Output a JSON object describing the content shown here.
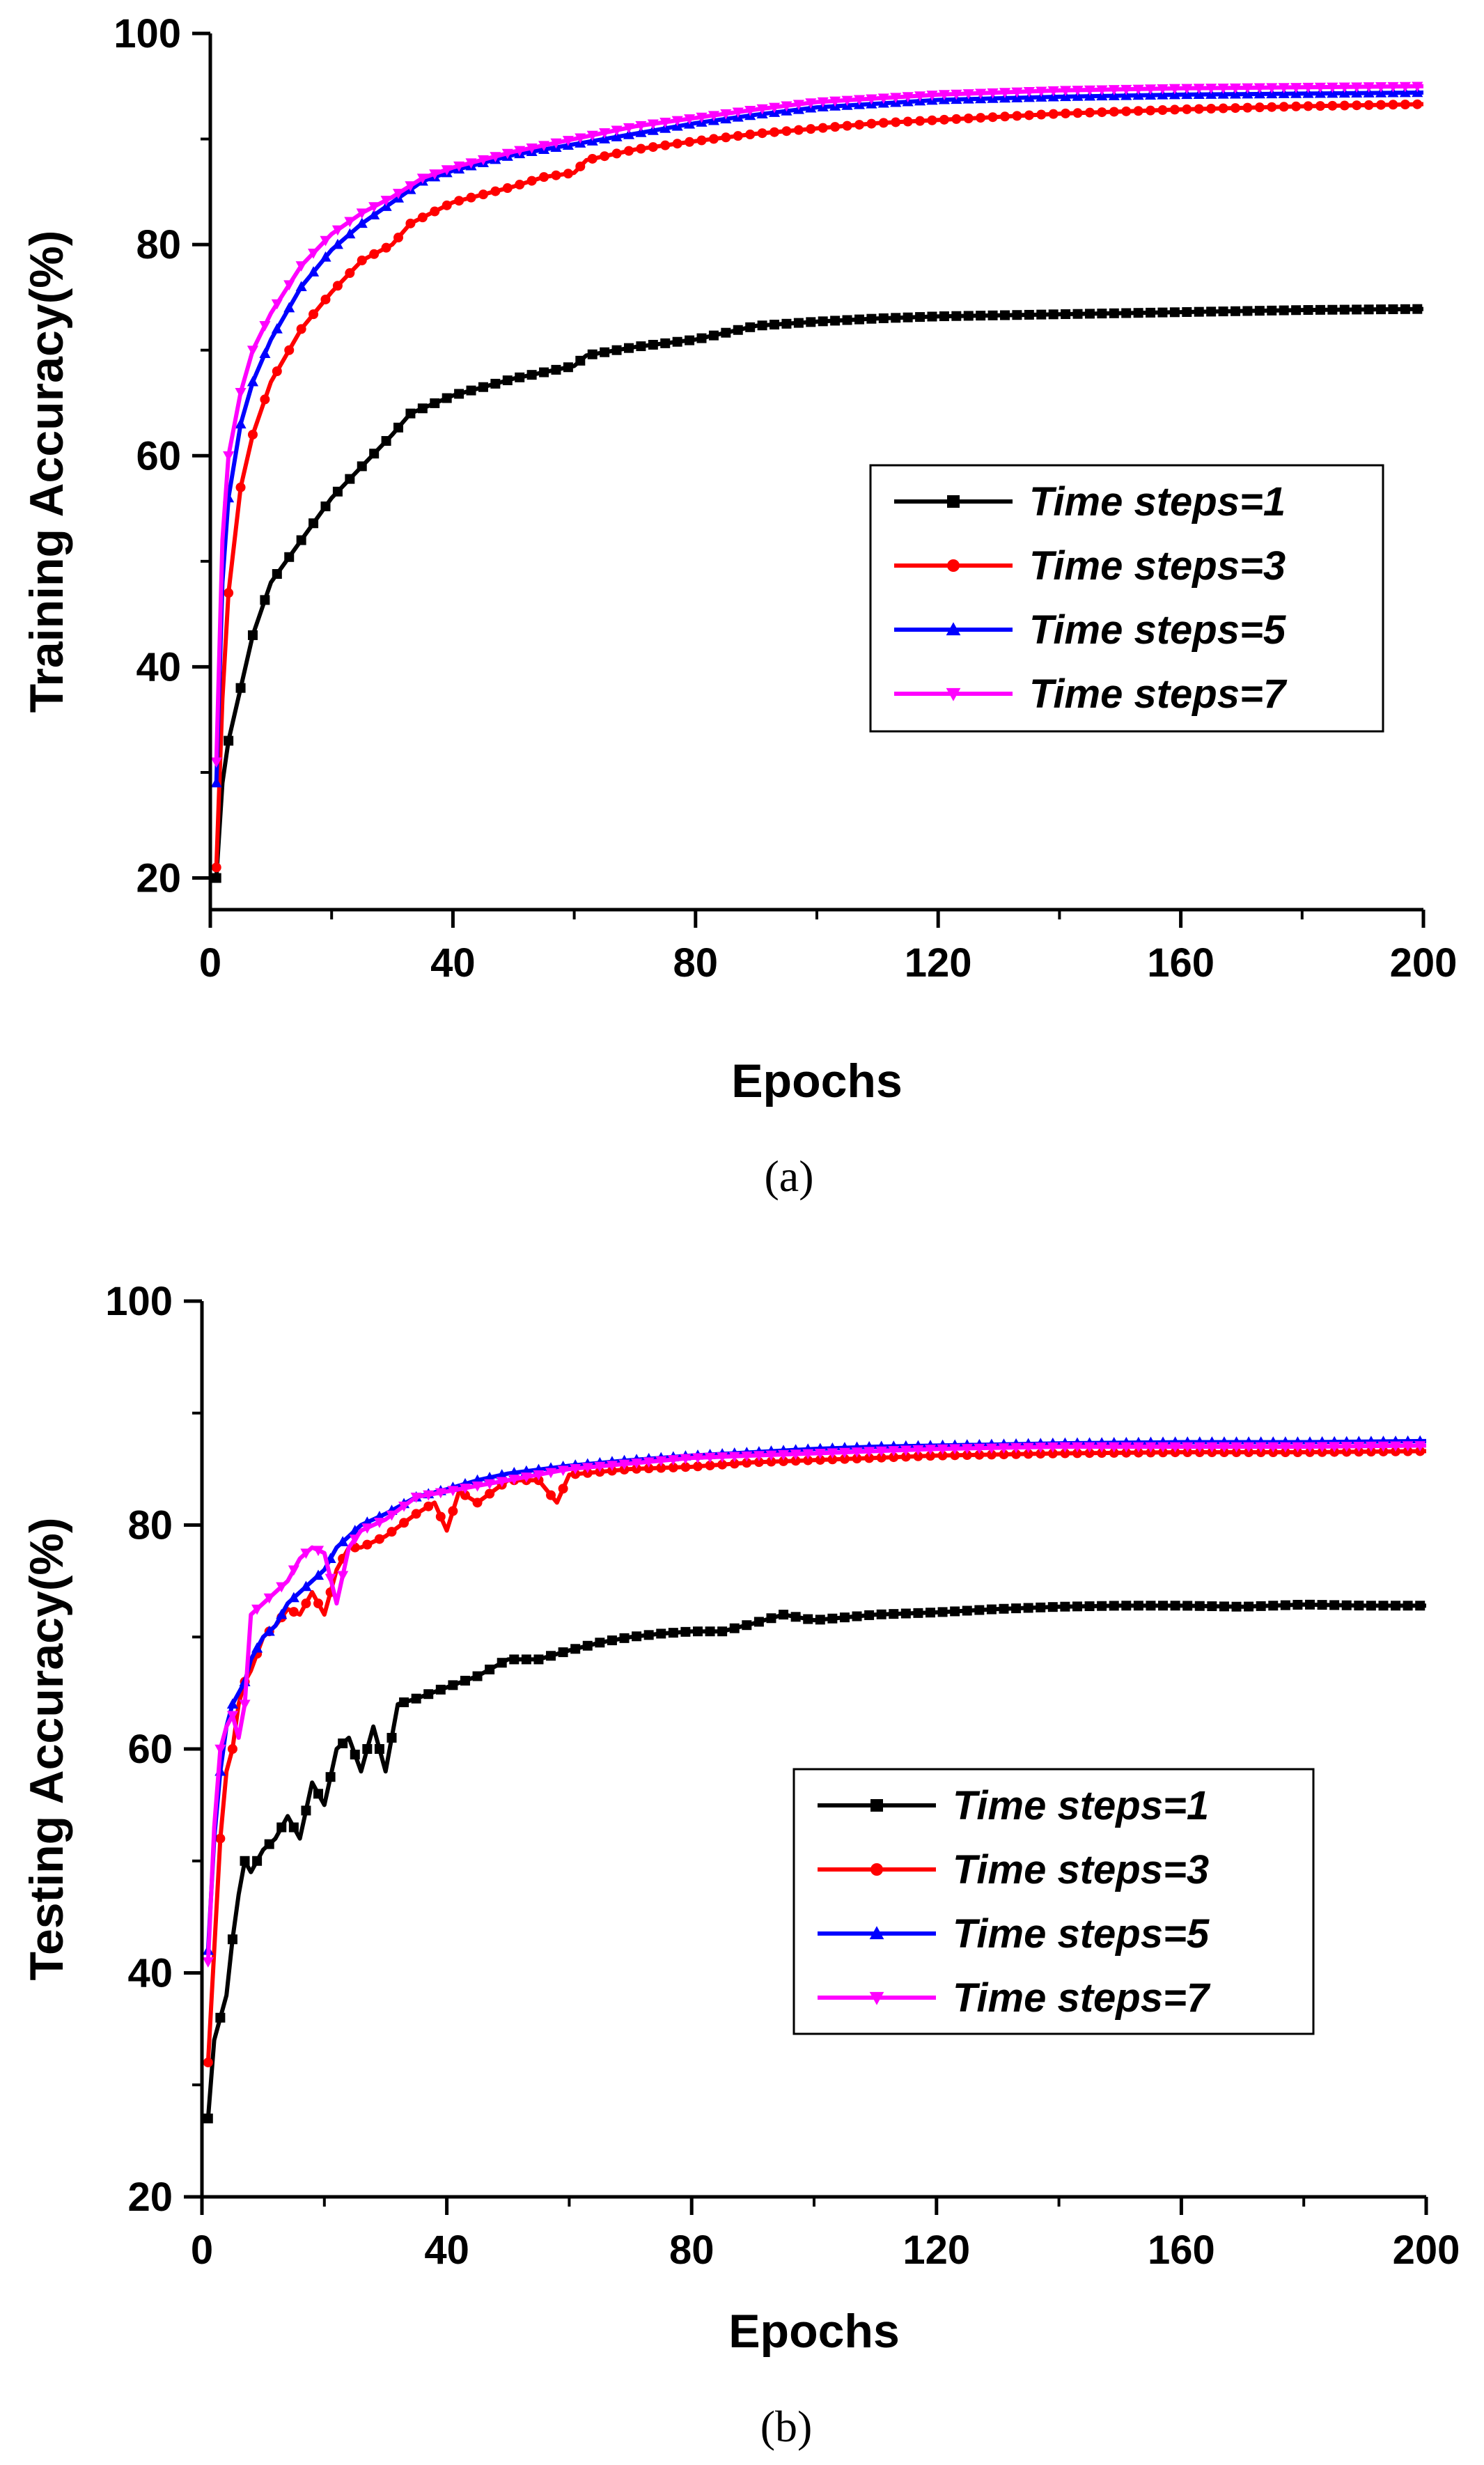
{
  "chart_data": [
    {
      "type": "line",
      "panel": "a",
      "caption": "(a)",
      "title": "",
      "xlabel": "Epochs",
      "ylabel": "Training Accuracy(%)",
      "xlim": [
        0,
        200
      ],
      "ylim": [
        17,
        100
      ],
      "x_ticks": [
        0,
        40,
        80,
        120,
        160,
        200
      ],
      "y_ticks": [
        20,
        40,
        60,
        80,
        100
      ],
      "x_tick_labels": [
        "0",
        "40",
        "80",
        "120",
        "160",
        "200"
      ],
      "y_tick_labels": [
        "20",
        "40",
        "60",
        "80",
        "100"
      ],
      "legend_position": "right-middle",
      "series": [
        {
          "name": "Time steps=1",
          "color": "#000000",
          "marker": "square",
          "x": [
            1,
            2,
            3,
            5,
            7,
            10,
            15,
            20,
            25,
            30,
            33,
            40,
            50,
            60,
            62,
            70,
            80,
            90,
            95,
            100,
            110,
            120,
            140,
            160,
            180,
            200
          ],
          "y": [
            20,
            29,
            33,
            38,
            43,
            48,
            52,
            56,
            59,
            62,
            64,
            65.7,
            67.3,
            68.5,
            69.5,
            70.3,
            71,
            72.3,
            72.5,
            72.7,
            73,
            73.2,
            73.4,
            73.6,
            73.8,
            73.9
          ]
        },
        {
          "name": "Time steps=3",
          "color": "#ff0000",
          "marker": "circle",
          "x": [
            1,
            2,
            3,
            5,
            7,
            10,
            15,
            20,
            25,
            30,
            33,
            40,
            50,
            55,
            60,
            62,
            70,
            80,
            90,
            100,
            110,
            120,
            140,
            160,
            180,
            200
          ],
          "y": [
            21,
            37,
            47,
            57,
            62,
            67,
            72,
            75.5,
            78.5,
            80,
            82,
            84,
            85.5,
            86.4,
            86.8,
            88,
            89,
            89.8,
            90.5,
            91,
            91.5,
            91.8,
            92.4,
            92.8,
            93.1,
            93.3
          ]
        },
        {
          "name": "Time steps=5",
          "color": "#0000ff",
          "marker": "triangle-up",
          "x": [
            1,
            2,
            3,
            5,
            7,
            10,
            15,
            20,
            25,
            30,
            35,
            40,
            50,
            60,
            70,
            80,
            90,
            100,
            120,
            140,
            160,
            180,
            200
          ],
          "y": [
            29,
            48,
            56,
            63,
            67,
            71,
            76,
            79.5,
            82,
            84,
            86,
            87,
            88.5,
            89.5,
            90.5,
            91.5,
            92.3,
            93,
            93.7,
            94,
            94.2,
            94.3,
            94.4
          ]
        },
        {
          "name": "Time steps=7",
          "color": "#ff00ff",
          "marker": "triangle-down",
          "x": [
            1,
            2,
            3,
            5,
            7,
            10,
            15,
            20,
            25,
            30,
            35,
            40,
            50,
            60,
            70,
            80,
            90,
            100,
            120,
            140,
            160,
            180,
            200
          ],
          "y": [
            31,
            52,
            60,
            66,
            70,
            73.5,
            78,
            81,
            83,
            84.5,
            86.3,
            87.3,
            88.8,
            90,
            91.2,
            92,
            92.8,
            93.5,
            94.2,
            94.6,
            94.8,
            94.9,
            95
          ]
        }
      ]
    },
    {
      "type": "line",
      "panel": "b",
      "caption": "(b)",
      "title": "",
      "xlabel": "Epochs",
      "ylabel": "Testing Accuracy(%)",
      "xlim": [
        0,
        200
      ],
      "ylim": [
        20,
        100
      ],
      "x_ticks": [
        0,
        40,
        80,
        120,
        160,
        200
      ],
      "y_ticks": [
        20,
        40,
        60,
        80,
        100
      ],
      "x_tick_labels": [
        "0",
        "40",
        "80",
        "120",
        "160",
        "200"
      ],
      "y_tick_labels": [
        "20",
        "40",
        "60",
        "80",
        "100"
      ],
      "legend_position": "right-middle",
      "series": [
        {
          "name": "Time steps=1",
          "color": "#000000",
          "marker": "square",
          "x": [
            1,
            2,
            3,
            4,
            5,
            6,
            7,
            8,
            10,
            12,
            14,
            16,
            18,
            20,
            22,
            24,
            26,
            28,
            30,
            32,
            35,
            40,
            45,
            50,
            55,
            60,
            65,
            70,
            75,
            80,
            85,
            90,
            95,
            100,
            110,
            120,
            130,
            140,
            150,
            160,
            170,
            180,
            190,
            200
          ],
          "y": [
            27,
            34,
            36,
            38,
            43,
            47,
            50,
            49,
            51,
            52,
            54,
            52,
            57,
            55,
            60,
            61,
            58,
            62,
            58,
            64,
            64.5,
            65.5,
            66.5,
            68,
            68,
            68.8,
            69.5,
            70,
            70.3,
            70.5,
            70.5,
            71.2,
            72,
            71.5,
            72,
            72.2,
            72.5,
            72.7,
            72.8,
            72.8,
            72.7,
            72.9,
            72.8,
            72.8
          ]
        },
        {
          "name": "Time steps=3",
          "color": "#ff0000",
          "marker": "circle",
          "x": [
            1,
            2,
            3,
            4,
            5,
            6,
            7,
            8,
            10,
            12,
            14,
            16,
            18,
            20,
            22,
            24,
            26,
            28,
            30,
            35,
            38,
            40,
            42,
            45,
            50,
            55,
            58,
            60,
            70,
            80,
            90,
            100,
            110,
            120,
            140,
            160,
            180,
            200
          ],
          "y": [
            32,
            42,
            52,
            58,
            60,
            64,
            66,
            67,
            70,
            71,
            72.5,
            72,
            74,
            72,
            76,
            78,
            78,
            78.5,
            79,
            81,
            82,
            79.5,
            83,
            82,
            84,
            84,
            82,
            84.5,
            85,
            85.2,
            85.6,
            85.8,
            86,
            86.2,
            86.4,
            86.5,
            86.5,
            86.6
          ]
        },
        {
          "name": "Time steps=5",
          "color": "#0000ff",
          "marker": "triangle-up",
          "x": [
            1,
            2,
            3,
            4,
            5,
            6,
            7,
            8,
            10,
            12,
            14,
            16,
            18,
            20,
            22,
            24,
            26,
            28,
            30,
            35,
            40,
            45,
            50,
            60,
            70,
            80,
            90,
            100,
            110,
            120,
            140,
            160,
            180,
            200
          ],
          "y": [
            42,
            52,
            58,
            62,
            64,
            65,
            66,
            68,
            70,
            71,
            73,
            74,
            75,
            76,
            78,
            79,
            80,
            80.5,
            81,
            82.5,
            83.2,
            84,
            84.6,
            85.3,
            85.8,
            86.2,
            86.5,
            86.8,
            87,
            87.1,
            87.3,
            87.4,
            87.4,
            87.5
          ]
        },
        {
          "name": "Time steps=7",
          "color": "#ff00ff",
          "marker": "triangle-down",
          "x": [
            1,
            2,
            3,
            4,
            5,
            6,
            7,
            8,
            10,
            12,
            14,
            16,
            18,
            20,
            22,
            24,
            26,
            28,
            30,
            35,
            40,
            45,
            50,
            60,
            70,
            80,
            90,
            100,
            110,
            120,
            140,
            160,
            180,
            200
          ],
          "y": [
            41,
            53,
            60,
            62,
            63,
            61,
            64,
            72,
            73,
            74,
            75,
            77,
            78,
            77.5,
            73,
            78,
            79.5,
            80,
            80.5,
            82.5,
            83,
            83.5,
            84,
            85,
            85.5,
            86,
            86.2,
            86.4,
            86.6,
            86.8,
            87,
            87,
            87,
            87.1
          ]
        }
      ]
    }
  ]
}
